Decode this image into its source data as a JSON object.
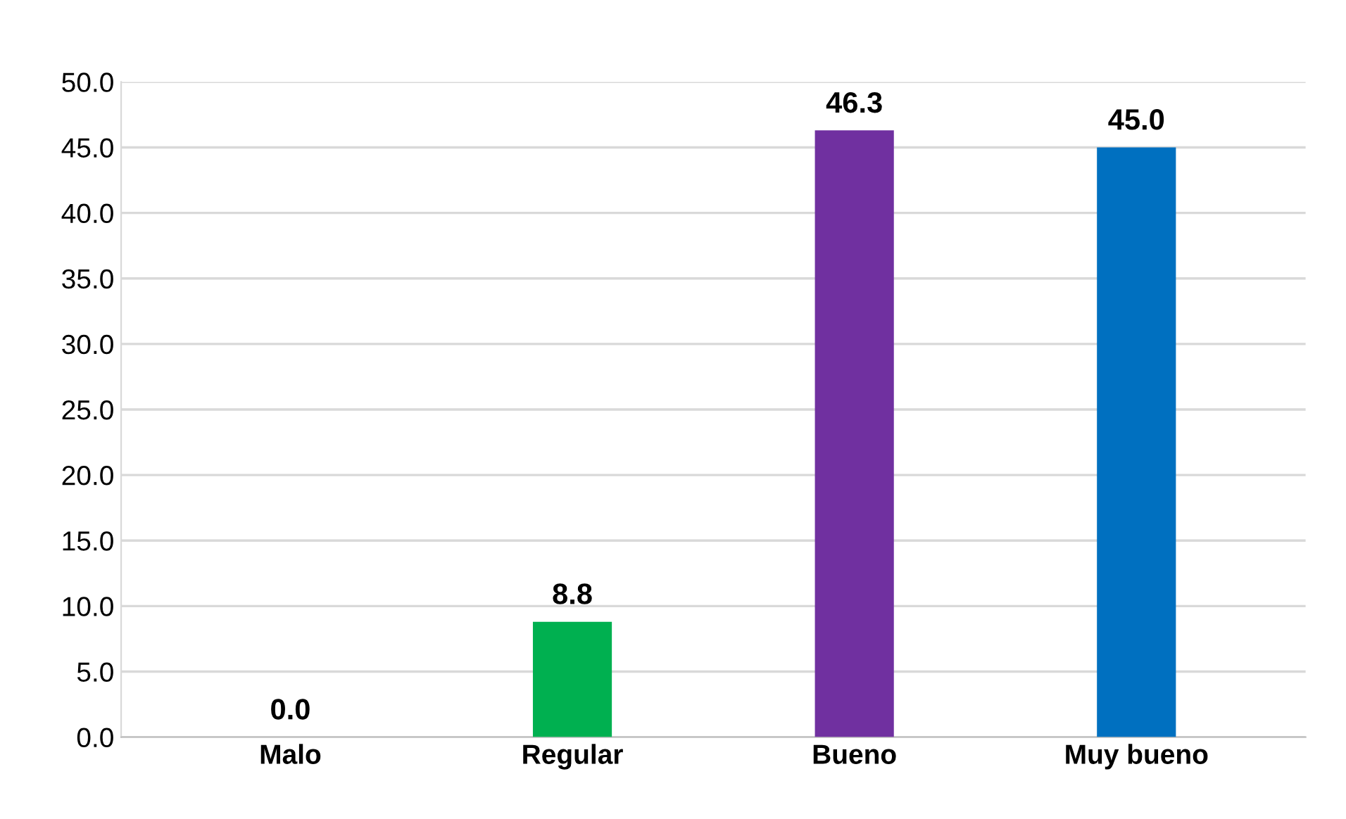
{
  "chart_data": {
    "type": "bar",
    "categories": [
      "Malo",
      "Regular",
      "Bueno",
      "Muy bueno"
    ],
    "values": [
      0.0,
      8.8,
      46.3,
      45.0
    ],
    "colors": [
      "#c00000",
      "#00b050",
      "#7030a0",
      "#0070c0"
    ],
    "value_labels": [
      "0.0",
      "8.8",
      "46.3",
      "45.0"
    ],
    "ylim": [
      0,
      50
    ],
    "yticks": [
      {
        "value": 0,
        "label": "0.0"
      },
      {
        "value": 5,
        "label": "5.0"
      },
      {
        "value": 10,
        "label": "10.0"
      },
      {
        "value": 15,
        "label": "15.0"
      },
      {
        "value": 20,
        "label": "20.0"
      },
      {
        "value": 25,
        "label": "25.0"
      },
      {
        "value": 30,
        "label": "30.0"
      },
      {
        "value": 35,
        "label": "35.0"
      },
      {
        "value": 40,
        "label": "40.0"
      },
      {
        "value": 45,
        "label": "45.0"
      },
      {
        "value": 50,
        "label": "50.0"
      }
    ],
    "grid": "y"
  }
}
